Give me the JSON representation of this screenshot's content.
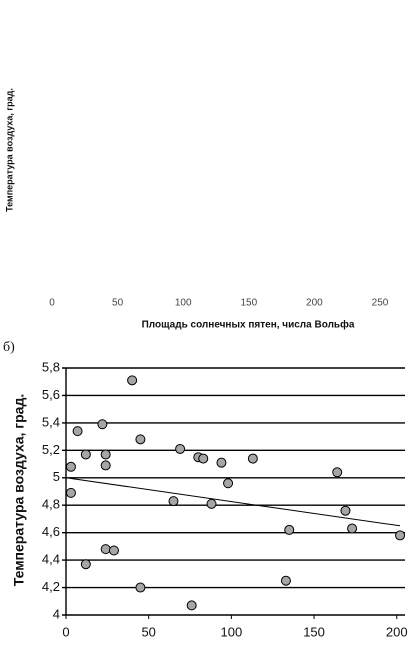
{
  "chart_data": [
    {
      "type": "scatter",
      "xlabel": "Площадь солнечных пятен, числа Вольфа",
      "ylabel": "Температура воздуха, град.",
      "xlim": [
        0,
        250
      ],
      "xticks": [
        0,
        50,
        100,
        150,
        200,
        250
      ]
    },
    {
      "type": "scatter",
      "panel_label": "б)",
      "ylabel": "Температура воздуха, град.",
      "xlim": [
        0,
        205
      ],
      "xticks": [
        0,
        50,
        100,
        150,
        200
      ],
      "ylim": [
        4,
        5.8
      ],
      "yticks": [
        {
          "value": 4,
          "label": "4"
        },
        {
          "value": 4.2,
          "label": "4,2"
        },
        {
          "value": 4.4,
          "label": "4,4"
        },
        {
          "value": 4.6,
          "label": "4,6"
        },
        {
          "value": 4.8,
          "label": "4,8"
        },
        {
          "value": 5,
          "label": "5"
        },
        {
          "value": 5.2,
          "label": "5,2"
        },
        {
          "value": 5.4,
          "label": "5,4"
        },
        {
          "value": 5.6,
          "label": "5,6"
        },
        {
          "value": 5.8,
          "label": "5,8"
        }
      ],
      "grid": true,
      "color": "#a6a6a6",
      "x": [
        3,
        3,
        7,
        12,
        12,
        22,
        24,
        24,
        24,
        29,
        40,
        45,
        45,
        65,
        69,
        76,
        80,
        83,
        88,
        94,
        98,
        113,
        133,
        135,
        164,
        169,
        173,
        202
      ],
      "values": [
        5.08,
        4.89,
        5.34,
        5.17,
        4.37,
        5.39,
        5.17,
        5.09,
        4.48,
        4.47,
        5.71,
        5.28,
        4.2,
        4.83,
        5.21,
        4.07,
        5.15,
        5.14,
        4.81,
        5.11,
        4.96,
        5.14,
        4.25,
        4.62,
        5.04,
        4.76,
        4.63,
        4.58
      ],
      "trend": {
        "x": [
          0,
          202
        ],
        "y": [
          5.0,
          4.65
        ]
      }
    }
  ]
}
